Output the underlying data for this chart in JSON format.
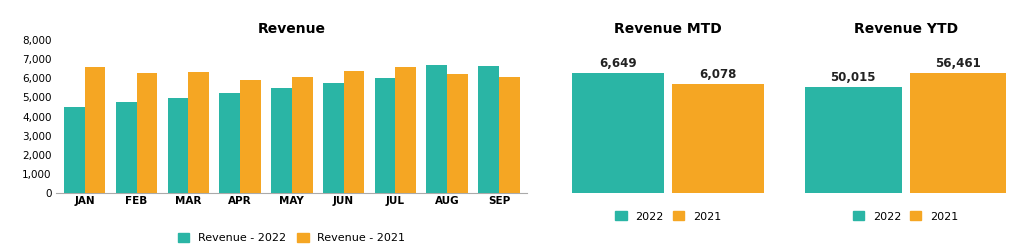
{
  "revenue_months": [
    "JAN",
    "FEB",
    "MAR",
    "APR",
    "MAY",
    "JUN",
    "JUL",
    "AUG",
    "SEP"
  ],
  "revenue_2022": [
    4500,
    4750,
    4950,
    5200,
    5500,
    5750,
    6000,
    6700,
    6650
  ],
  "revenue_2021": [
    6600,
    6250,
    6300,
    5900,
    6050,
    6350,
    6600,
    6200,
    6050
  ],
  "mtd_2022": 6649,
  "mtd_2021": 6078,
  "ytd_2022": 50015,
  "ytd_2021": 56461,
  "color_2022": "#2ab5a5",
  "color_2021": "#f5a623",
  "title_revenue": "Revenue",
  "title_mtd": "Revenue MTD",
  "title_ytd": "Revenue YTD",
  "legend_2022": "Revenue - 2022",
  "legend_2021": "Revenue - 2021",
  "legend_2022_short": "2022",
  "legend_2021_short": "2021",
  "ylim_revenue": [
    0,
    8000
  ],
  "yticks_revenue": [
    0,
    1000,
    2000,
    3000,
    4000,
    5000,
    6000,
    7000,
    8000
  ],
  "bg_color": "#ffffff",
  "title_fontsize": 10,
  "tick_fontsize": 7.5,
  "label_fontsize": 8,
  "bar_value_fontsize": 8.5
}
